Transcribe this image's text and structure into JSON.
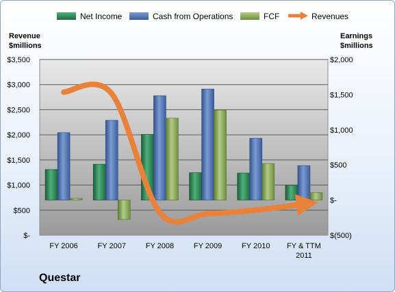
{
  "colors": {
    "net_income": "#2e8b57",
    "cash_ops": "#4f77b8",
    "fcf": "#8eb05a",
    "revenues": "#e8823a",
    "plot_bg_top": "#e8e8e8",
    "plot_bg_bottom": "#9a9a9a"
  },
  "legend": {
    "net_income": "Net Income",
    "cash_ops": "Cash from Operations",
    "fcf": "FCF",
    "revenues": "Revenues"
  },
  "left_axis_title": [
    "Revenue",
    "$millions"
  ],
  "right_axis_title": [
    "Earnings",
    "$millions"
  ],
  "company": "Questar",
  "chart_data": {
    "type": "bar",
    "categories": [
      [
        "FY 2006"
      ],
      [
        "FY 2007"
      ],
      [
        "FY 2008"
      ],
      [
        "FY 2009"
      ],
      [
        "FY 2010"
      ],
      [
        "FY & TTM",
        "2011"
      ]
    ],
    "left_axis": {
      "ticks": [
        "$-",
        "$500",
        "$1,000",
        "$1,500",
        "$2,000",
        "$2,500",
        "$3,000",
        "$3,500"
      ],
      "ylim": [
        0,
        3500
      ]
    },
    "right_axis": {
      "ticks": [
        "$(500)",
        "$-",
        "$500",
        "$1,000",
        "$1,500",
        "$2,000"
      ],
      "ylim": [
        -500,
        2000
      ]
    },
    "grid": true,
    "series": [
      {
        "name": "Net Income",
        "axis": "right",
        "values": [
          435,
          510,
          935,
          390,
          385,
          210
        ]
      },
      {
        "name": "Cash from Operations",
        "axis": "right",
        "values": [
          960,
          1135,
          1485,
          1580,
          880,
          490
        ]
      },
      {
        "name": "FCF",
        "axis": "right",
        "values": [
          25,
          -275,
          1165,
          1280,
          520,
          105
        ]
      },
      {
        "name": "Revenues",
        "axis": "left",
        "type": "line",
        "values": [
          2850,
          2820,
          450,
          430,
          500,
          620
        ]
      }
    ]
  }
}
